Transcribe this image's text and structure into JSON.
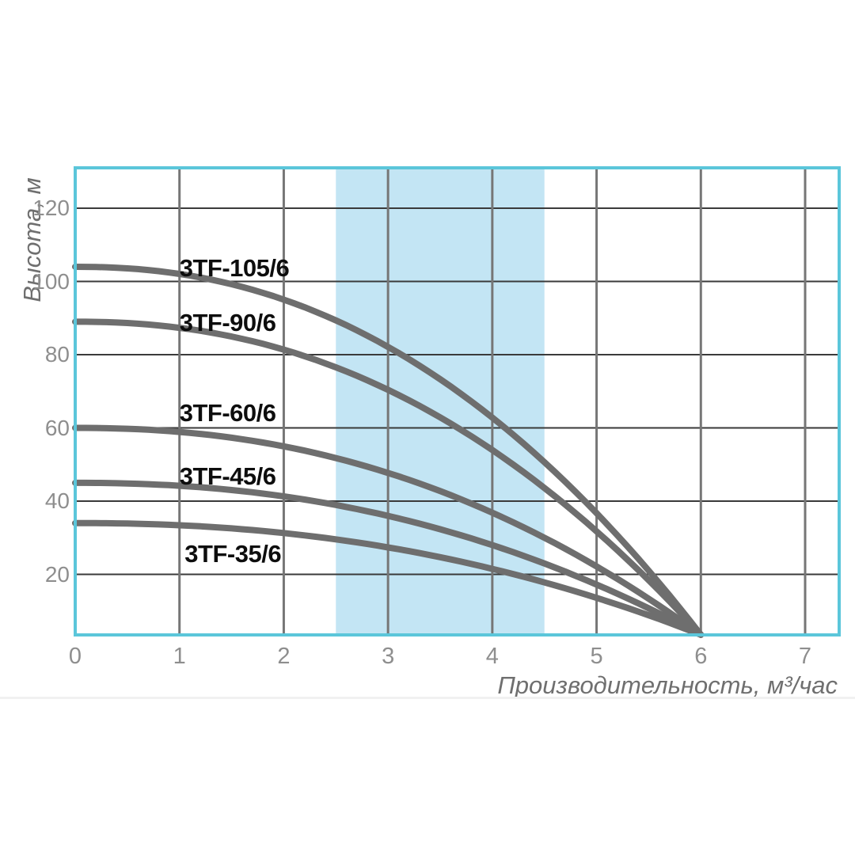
{
  "chart_data": {
    "type": "line",
    "title": "",
    "xlabel": "Производительность, м³/час",
    "ylabel": "Высота, м",
    "x_ticks": [
      0,
      1,
      2,
      3,
      4,
      5,
      6,
      7
    ],
    "y_ticks": [
      20,
      40,
      60,
      80,
      100,
      120
    ],
    "xlim": [
      0,
      7.33
    ],
    "ylim": [
      3.5,
      131
    ],
    "grid": true,
    "legend_position": "inline-labels",
    "highlight_band": {
      "x_from": 2.5,
      "x_to": 4.5
    },
    "convergence_point": {
      "x": 6,
      "y": 3.5
    },
    "curve_exponent": 2.2,
    "series": [
      {
        "name": "3TF-105/6",
        "h0": 104,
        "points": [
          [
            0,
            104
          ],
          [
            1,
            102
          ],
          [
            2,
            95
          ],
          [
            3,
            81
          ],
          [
            4,
            63
          ],
          [
            5,
            38
          ],
          [
            6,
            4
          ]
        ],
        "label_pos": {
          "x": 1.0,
          "y": 107.5
        }
      },
      {
        "name": "3TF-90/6",
        "h0": 89,
        "points": [
          [
            0,
            89
          ],
          [
            1,
            87
          ],
          [
            2,
            81
          ],
          [
            3,
            70
          ],
          [
            4,
            54
          ],
          [
            5,
            32
          ],
          [
            6,
            4
          ]
        ],
        "label_pos": {
          "x": 1.0,
          "y": 92.5
        }
      },
      {
        "name": "3TF-60/6",
        "h0": 60,
        "points": [
          [
            0,
            60
          ],
          [
            1,
            59
          ],
          [
            2,
            55
          ],
          [
            3,
            48
          ],
          [
            4,
            37
          ],
          [
            5,
            22
          ],
          [
            6,
            4
          ]
        ],
        "label_pos": {
          "x": 1.0,
          "y": 68
        }
      },
      {
        "name": "3TF-45/6",
        "h0": 45,
        "points": [
          [
            0,
            45
          ],
          [
            1,
            44
          ],
          [
            2,
            41
          ],
          [
            3,
            36
          ],
          [
            4,
            28
          ],
          [
            5,
            17
          ],
          [
            6,
            4
          ]
        ],
        "label_pos": {
          "x": 1.0,
          "y": 50.5
        }
      },
      {
        "name": "3TF-35/6",
        "h0": 34,
        "points": [
          [
            0,
            34
          ],
          [
            1,
            33
          ],
          [
            2,
            31
          ],
          [
            3,
            27
          ],
          [
            4,
            21
          ],
          [
            5,
            14
          ],
          [
            6,
            4
          ]
        ],
        "label_pos": {
          "x": 1.05,
          "y": 29.5
        }
      }
    ],
    "colors": {
      "curve": "#6e6e6e",
      "plot_border": "#5bc6da",
      "band": "#c3e5f4",
      "h_grid": "#3a3a3a",
      "v_grid": "#767676",
      "tick_text": "#8e8e8e",
      "axis_title_text": "#6f6f6f",
      "series_label_text": "#0d0d0d"
    }
  }
}
